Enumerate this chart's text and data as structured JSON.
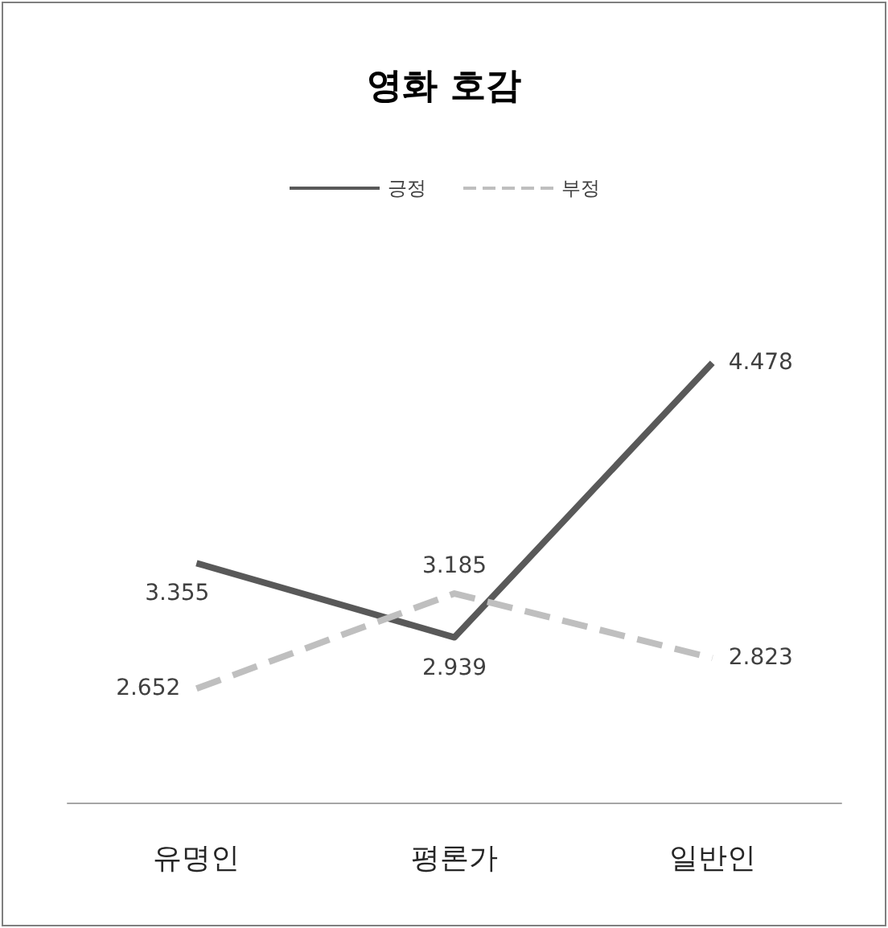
{
  "chart_data": {
    "type": "line",
    "title": "영화 호감",
    "categories": [
      "유명인",
      "평론가",
      "일반인"
    ],
    "series": [
      {
        "name": "긍정",
        "color": "#595959",
        "values": [
          3.355,
          2.939,
          4.478
        ],
        "line_style": "solid"
      },
      {
        "name": "부정",
        "color": "#bfbfbf",
        "values": [
          2.652,
          3.185,
          2.823
        ],
        "line_style": "dashed"
      }
    ],
    "data_labels": true,
    "legend": "top",
    "grid": false,
    "marker": "none"
  }
}
